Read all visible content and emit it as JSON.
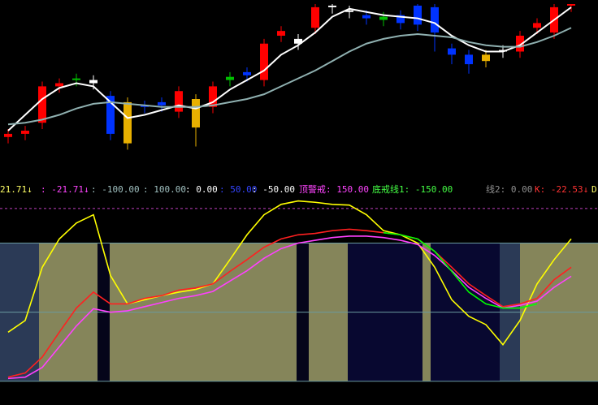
{
  "chart_data": [
    {
      "type": "candlestick",
      "open": [
        16,
        18,
        25,
        48,
        52,
        52,
        42,
        38,
        35,
        36,
        32,
        40,
        35,
        52,
        55,
        52,
        80,
        78,
        85,
        98,
        95,
        93,
        92,
        93,
        99,
        98,
        72,
        68,
        68,
        70,
        70,
        85,
        82,
        99
      ],
      "close": [
        18,
        20,
        48,
        50,
        53,
        50,
        18,
        12,
        36,
        38,
        45,
        22,
        48,
        54,
        57,
        75,
        83,
        75,
        98,
        99,
        96,
        91,
        90,
        88,
        87,
        82,
        68,
        62,
        64,
        71,
        80,
        88,
        98,
        100
      ],
      "high": [
        21,
        23,
        51,
        53,
        56,
        55,
        45,
        41,
        39,
        41,
        48,
        43,
        51,
        57,
        60,
        78,
        86,
        81,
        100,
        100,
        99,
        96,
        95,
        96,
        100,
        100,
        75,
        71,
        71,
        74,
        83,
        91,
        100,
        100
      ],
      "low": [
        12,
        14,
        21,
        44,
        48,
        46,
        14,
        8,
        31,
        32,
        28,
        10,
        31,
        48,
        51,
        48,
        76,
        71,
        81,
        94,
        91,
        87,
        86,
        84,
        83,
        70,
        62,
        56,
        60,
        66,
        66,
        81,
        78,
        95
      ],
      "colors": [
        "#ff0000",
        "#ff0000",
        "#ff0000",
        "#ff0000",
        "#00c000",
        "#ffffff",
        "#0033ff",
        "#e8b000",
        "#0033ff",
        "#0033ff",
        "#ff0000",
        "#e8b000",
        "#ff0000",
        "#00c000",
        "#0033ff",
        "#ff0000",
        "#ff0000",
        "#ffffff",
        "#ff0000",
        "#ffffff",
        "#ffffff",
        "#0033ff",
        "#00c000",
        "#0033ff",
        "#0033ff",
        "#0033ff",
        "#0033ff",
        "#0033ff",
        "#e8b000",
        "#ffffff",
        "#ff0000",
        "#ff0000",
        "#ff0000",
        "#ff0000"
      ],
      "ylim": [
        0,
        100
      ],
      "lines": [
        {
          "color": "#ffffff",
          "values": [
            20,
            30,
            40,
            47,
            50,
            48,
            38,
            28,
            30,
            33,
            36,
            34,
            38,
            46,
            52,
            58,
            68,
            74,
            82,
            92,
            97,
            95,
            93,
            92,
            91,
            88,
            80,
            74,
            70,
            70,
            74,
            82,
            90,
            98
          ]
        },
        {
          "color": "#8fb0b0",
          "values": [
            24,
            25,
            27,
            30,
            34,
            37,
            38,
            37,
            36,
            35,
            35,
            35,
            36,
            38,
            40,
            43,
            48,
            53,
            58,
            64,
            70,
            75,
            78,
            80,
            81,
            80,
            79,
            76,
            74,
            73,
            73,
            76,
            80,
            85
          ]
        }
      ]
    },
    {
      "type": "line",
      "legend": [
        {
          "text": "21.71↓",
          "color": "#ffff66"
        },
        {
          "text": ": -21.71↓",
          "color": "#ff44ff"
        },
        {
          "text": ": -100.00",
          "color": "#a0c0c0"
        },
        {
          "text": ": 100.00",
          "color": "#a0c0c0"
        },
        {
          "text": ": 0.00",
          "color": "#ffffff"
        },
        {
          "text": ": 50.00",
          "color": "#3344ff"
        },
        {
          "text": ": -50.00",
          "color": "#ffffff"
        },
        {
          "text": "顶警戒: 150.00",
          "color": "#ff44ff"
        },
        {
          "text": "底戒线1: -150.00",
          "color": "#44ff44"
        },
        {
          "text": "线2: 0.00",
          "color": "#909090"
        },
        {
          "text": "K: -22.53↓",
          "color": "#ff3333"
        },
        {
          "text": "D",
          "color": "#ffff66"
        }
      ],
      "ylim": [
        -112,
        164
      ],
      "reference_lines": [
        150,
        100,
        0,
        -100
      ],
      "series": [
        {
          "color": "#ffff00",
          "values": [
            -29,
            -12,
            65,
            106,
            129,
            141,
            53,
            12,
            18,
            24,
            29,
            33,
            41,
            76,
            112,
            141,
            156,
            161,
            159,
            156,
            155,
            141,
            118,
            112,
            100,
            65,
            18,
            -6,
            -18,
            -47,
            -12,
            41,
            76,
            106
          ]
        },
        {
          "color": "#ff2020",
          "values": [
            -94,
            -88,
            -65,
            -29,
            6,
            29,
            12,
            12,
            20,
            24,
            32,
            35,
            41,
            59,
            76,
            94,
            106,
            112,
            114,
            118,
            120,
            118,
            115,
            112,
            106,
            88,
            65,
            41,
            24,
            8,
            12,
            20,
            47,
            65
          ]
        },
        {
          "color": "#ff40ff",
          "values": [
            -96,
            -94,
            -80,
            -50,
            -20,
            5,
            0,
            2,
            8,
            14,
            20,
            24,
            30,
            45,
            60,
            78,
            92,
            100,
            104,
            108,
            110,
            110,
            108,
            104,
            98,
            82,
            60,
            36,
            20,
            6,
            10,
            16,
            36,
            52
          ]
        },
        {
          "color": "#00ff00",
          "values": [
            null,
            null,
            null,
            null,
            null,
            null,
            null,
            null,
            null,
            null,
            null,
            null,
            null,
            null,
            null,
            null,
            null,
            null,
            null,
            null,
            null,
            null,
            115,
            112,
            106,
            88,
            59,
            29,
            12,
            6,
            6,
            12,
            null,
            null
          ]
        }
      ]
    }
  ]
}
